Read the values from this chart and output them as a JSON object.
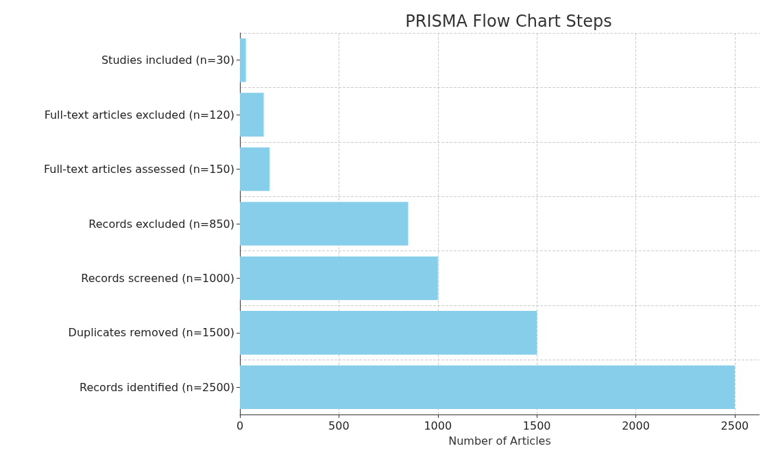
{
  "chart_data": {
    "type": "bar",
    "orientation": "horizontal",
    "title": "PRISMA Flow Chart Steps",
    "xlabel": "Number of Articles",
    "categories": [
      "Studies included (n=30)",
      "Full-text articles excluded (n=120)",
      "Full-text articles assessed (n=150)",
      "Records excluded (n=850)",
      "Records screened (n=1000)",
      "Duplicates removed (n=1500)",
      "Records identified (n=2500)"
    ],
    "values": [
      30,
      120,
      150,
      850,
      1000,
      1500,
      2500
    ],
    "color": "#87ceeb",
    "xlim": [
      0,
      2625
    ],
    "xticks": [
      0,
      500,
      1000,
      1500,
      2000,
      2500
    ],
    "grid": true
  }
}
